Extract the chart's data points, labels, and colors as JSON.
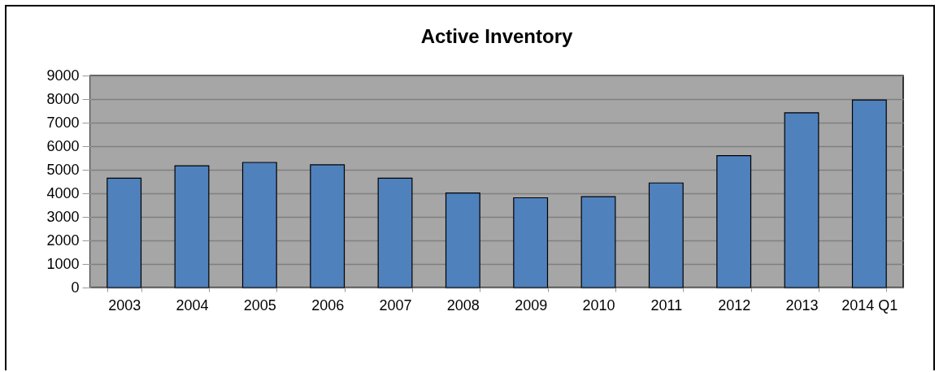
{
  "chart_data": {
    "type": "bar",
    "title": "Active Inventory",
    "categories": [
      "2003",
      "2004",
      "2005",
      "2006",
      "2007",
      "2008",
      "2009",
      "2010",
      "2011",
      "2012",
      "2013",
      "2014 Q1"
    ],
    "values": [
      4640,
      5170,
      5310,
      5210,
      4640,
      4010,
      3810,
      3860,
      4440,
      5600,
      7420,
      7960
    ],
    "color": "#4f81bd",
    "ylim": [
      0,
      9000
    ],
    "yticks": [
      0,
      1000,
      2000,
      3000,
      4000,
      5000,
      6000,
      7000,
      8000,
      9000
    ],
    "grid": "y"
  }
}
